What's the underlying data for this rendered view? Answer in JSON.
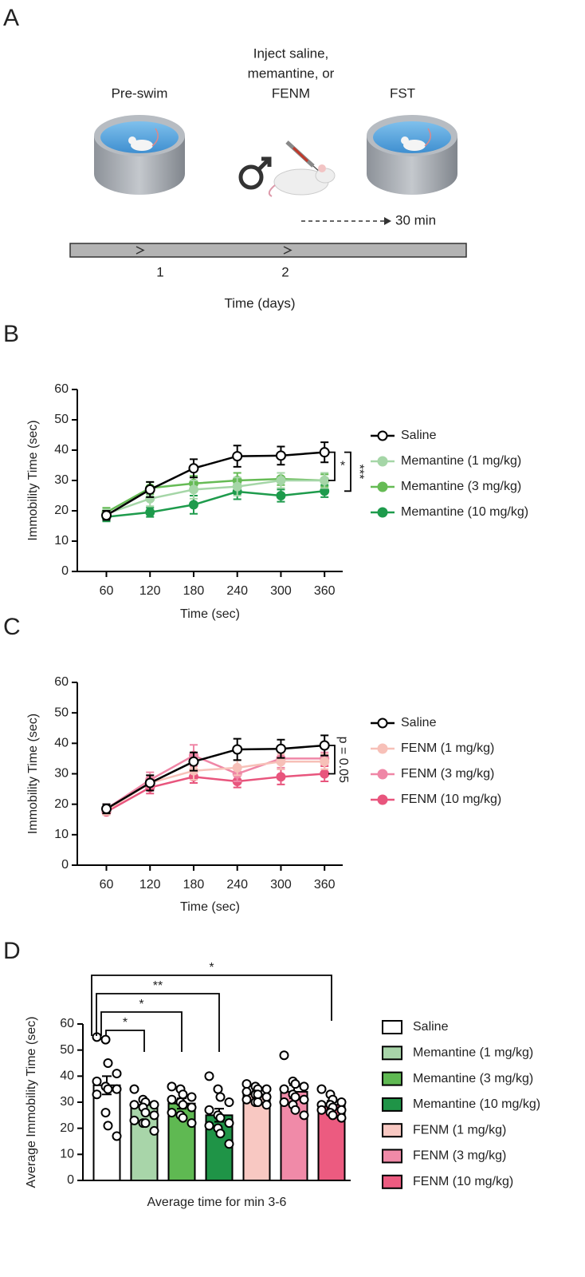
{
  "panel_a": {
    "label": "A",
    "steps": [
      {
        "lines": [
          "Pre-swim"
        ]
      },
      {
        "lines": [
          "Inject saline,",
          "memantine, or",
          "FENM"
        ]
      },
      {
        "lines": [
          "FST"
        ]
      }
    ],
    "delay": "30 min",
    "timeline_ticks": [
      "1",
      "2"
    ],
    "timeline_label": "Time (days)"
  },
  "chart_data": [
    {
      "label": "B",
      "type": "line",
      "x": [
        60,
        120,
        180,
        240,
        300,
        360
      ],
      "xlim": [
        20,
        385
      ],
      "xticks": [
        60,
        120,
        180,
        240,
        300,
        360
      ],
      "ylim": [
        0,
        60
      ],
      "yticks": [
        0,
        10,
        20,
        30,
        40,
        50,
        60
      ],
      "xlabel": "Time (sec)",
      "ylabel": "Immobility Time (sec)",
      "legend": "right",
      "series": [
        {
          "name": "Saline",
          "color": "#000000",
          "marker": "open",
          "values": [
            18.5,
            27,
            34,
            38,
            38.2,
            39.3
          ],
          "errors": [
            1.5,
            2.5,
            3,
            3.5,
            3,
            3.3
          ]
        },
        {
          "name": "Memantine (1 mg/kg)",
          "color": "#a5d6a7",
          "marker": "filled",
          "values": [
            19,
            24,
            27,
            28,
            30,
            30
          ],
          "errors": [
            1.5,
            2.5,
            3,
            3,
            2.5,
            2.5
          ]
        },
        {
          "name": "Memantine (3 mg/kg)",
          "color": "#66bb55",
          "marker": "filled",
          "values": [
            19.5,
            27.5,
            29,
            30,
            30.5,
            30
          ],
          "errors": [
            1.5,
            2,
            2.5,
            2.5,
            2,
            2
          ]
        },
        {
          "name": "Memantine (10 mg/kg)",
          "color": "#1e9b4c",
          "marker": "filled",
          "values": [
            18,
            19.5,
            22,
            26.3,
            25,
            26.5
          ],
          "errors": [
            1.5,
            1.5,
            3,
            2.5,
            2,
            2
          ]
        }
      ],
      "annotations": [
        {
          "text": "*",
          "series": [
            0,
            2
          ]
        },
        {
          "text": "***",
          "series": [
            0,
            3
          ],
          "rotation": 90
        }
      ]
    },
    {
      "label": "C",
      "type": "line",
      "x": [
        60,
        120,
        180,
        240,
        300,
        360
      ],
      "xlim": [
        20,
        385
      ],
      "xticks": [
        60,
        120,
        180,
        240,
        300,
        360
      ],
      "ylim": [
        0,
        60
      ],
      "yticks": [
        0,
        10,
        20,
        30,
        40,
        50,
        60
      ],
      "xlabel": "Time (sec)",
      "ylabel": "Immobility Time (sec)",
      "legend": "right",
      "series": [
        {
          "name": "Saline",
          "color": "#000000",
          "marker": "open",
          "values": [
            18.5,
            27,
            34,
            38,
            38.2,
            39.3
          ],
          "errors": [
            1.5,
            2.5,
            3,
            3.5,
            3,
            3.3
          ]
        },
        {
          "name": "FENM (1 mg/kg)",
          "color": "#f7c0b8",
          "marker": "filled",
          "values": [
            18,
            27,
            31,
            32,
            34,
            34
          ],
          "errors": [
            1.5,
            2.5,
            3,
            2.5,
            2.5,
            2.5
          ]
        },
        {
          "name": "FENM (3 mg/kg)",
          "color": "#ef86a6",
          "marker": "filled",
          "values": [
            18.5,
            28,
            36,
            30,
            35,
            35
          ],
          "errors": [
            1.5,
            2.5,
            3.5,
            2.5,
            3,
            2
          ]
        },
        {
          "name": "FENM (10 mg/kg)",
          "color": "#e8557d",
          "marker": "filled",
          "values": [
            17.5,
            25.5,
            29,
            27.5,
            29,
            30
          ],
          "errors": [
            1,
            2,
            2,
            2,
            2.5,
            2.5
          ]
        }
      ],
      "annotations": [
        {
          "text": "p = 0.05",
          "series": [
            0,
            3
          ],
          "rotation": 90
        }
      ]
    },
    {
      "label": "D",
      "type": "bar",
      "categories": [
        "Saline",
        "Memantine (1 mg/kg)",
        "Memantine (3 mg/kg)",
        "Memantine (10 mg/kg)",
        "FENM (1 mg/kg)",
        "FENM (3 mg/kg)",
        "FENM (10 mg/kg)"
      ],
      "colors": [
        "#ffffff",
        "#a8d5a9",
        "#5fb952",
        "#1f9447",
        "#f8c8c2",
        "#f08aa8",
        "#ec5b80"
      ],
      "values": [
        36.5,
        29,
        29.5,
        25,
        33,
        34,
        29
      ],
      "errors": [
        3.5,
        2,
        2,
        2.5,
        1.2,
        2.5,
        1.5
      ],
      "points": [
        [
          55,
          54,
          45,
          41,
          38,
          36,
          35,
          35,
          33,
          26,
          21,
          17
        ],
        [
          35,
          31,
          30,
          29,
          29,
          28,
          26,
          25,
          23,
          22,
          22,
          19
        ],
        [
          36,
          35,
          33,
          32,
          31,
          30,
          29,
          28,
          26,
          25,
          24,
          22
        ],
        [
          40,
          35,
          32,
          30,
          27,
          25,
          24,
          22,
          21,
          20,
          18,
          14
        ],
        [
          37,
          36,
          35,
          35,
          34,
          33,
          33,
          32,
          31,
          30,
          30,
          29
        ],
        [
          48,
          38,
          37,
          36,
          35,
          33,
          32,
          31,
          30,
          29,
          27,
          25
        ],
        [
          35,
          33,
          31,
          30,
          29,
          29,
          28,
          27,
          27,
          26,
          25,
          24
        ]
      ],
      "ylim": [
        0,
        60
      ],
      "yticks": [
        0,
        10,
        20,
        30,
        40,
        50,
        60
      ],
      "xlabel": "Average time for min 3-6",
      "ylabel": "Average Immobility Time (sec)",
      "legend": "right",
      "comparisons": [
        {
          "text": "*",
          "between": [
            0,
            1
          ]
        },
        {
          "text": "*",
          "between": [
            0,
            2
          ]
        },
        {
          "text": "**",
          "between": [
            0,
            3
          ]
        },
        {
          "text": "*",
          "between": [
            0,
            6
          ]
        }
      ]
    }
  ]
}
